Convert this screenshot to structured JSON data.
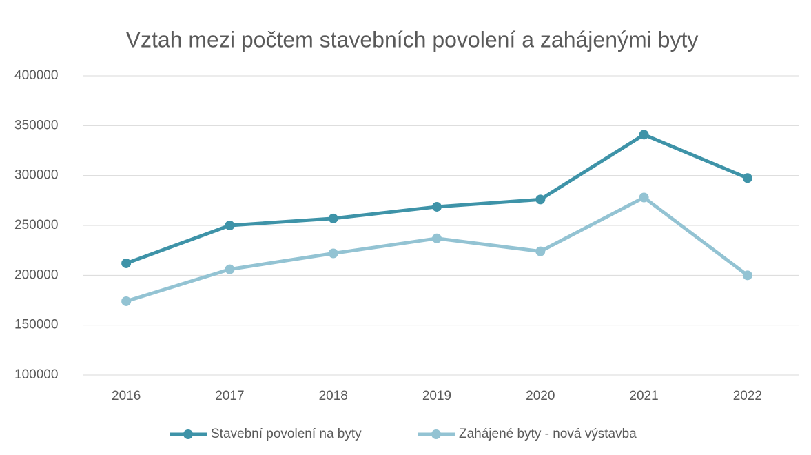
{
  "chart_data": {
    "type": "line",
    "title": "Vztah mezi počtem stavebních povolení a zahájenými byty",
    "categories": [
      "2016",
      "2017",
      "2018",
      "2019",
      "2020",
      "2021",
      "2022"
    ],
    "series": [
      {
        "name": "Stavební povolení na byty",
        "color": "#3e93a8",
        "values": [
          212000,
          250000,
          257000,
          268700,
          276000,
          341000,
          297500
        ]
      },
      {
        "name": "Zahájené byty - nová výstavba",
        "color": "#93c3d3",
        "values": [
          174000,
          206000,
          222000,
          237000,
          224000,
          278000,
          200000
        ]
      }
    ],
    "ylim": [
      100000,
      400000
    ],
    "yticks": [
      100000,
      150000,
      200000,
      250000,
      300000,
      350000,
      400000
    ],
    "grid": true,
    "legend": "bottom"
  }
}
